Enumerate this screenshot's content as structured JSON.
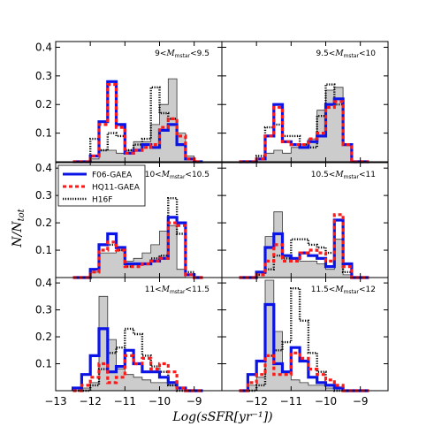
{
  "chart_data": {
    "type": "step-histogram",
    "xlabel": "Log(sSFR[yr⁻¹])",
    "ylabel": "N/N_tot",
    "xlim": [
      -13,
      -8.2
    ],
    "ylim": [
      0,
      0.42
    ],
    "xticks": [
      -13,
      -12,
      -11,
      -10,
      -9
    ],
    "xtick_labels": [
      "−13",
      "−12",
      "−11",
      "−10",
      "−9"
    ],
    "yticks": [
      0.1,
      0.2,
      0.3,
      0.4
    ],
    "ytick_labels": [
      "0.1",
      "0.2",
      "0.3",
      "0.4"
    ],
    "bin_edges": [
      -12.5,
      -12.25,
      -12.0,
      -11.75,
      -11.5,
      -11.25,
      -11.0,
      -10.75,
      -10.5,
      -10.25,
      -10.0,
      -9.75,
      -9.5,
      -9.25,
      -9.0,
      -8.75
    ],
    "legend": {
      "position": "upper-left of middle-left panel",
      "entries": [
        {
          "name": "F06-GAEA",
          "color": "#0a14e6",
          "style": "solid"
        },
        {
          "name": "HQ11-GAEA",
          "color": "#ff1a1a",
          "style": "dashed"
        },
        {
          "name": "H16F",
          "color": "#000000",
          "style": "dotted"
        }
      ]
    },
    "panels": [
      {
        "label_pre": "9<",
        "label_sym": "M",
        "label_sub": "mstar",
        "label_post": "<9.5",
        "series": {
          "F06-GAEA": [
            0.0,
            0.0,
            0.02,
            0.14,
            0.28,
            0.13,
            0.03,
            0.04,
            0.06,
            0.05,
            0.11,
            0.13,
            0.06,
            0.01,
            0.0
          ],
          "HQ11-GAEA": [
            0.0,
            0.0,
            0.02,
            0.13,
            0.27,
            0.12,
            0.03,
            0.04,
            0.05,
            0.06,
            0.12,
            0.15,
            0.09,
            0.01,
            0.0
          ],
          "H16F": [
            0.0,
            0.0,
            0.08,
            0.04,
            0.1,
            0.09,
            0.04,
            0.06,
            0.08,
            0.26,
            0.17,
            0.15,
            0.06,
            0.01,
            0.0
          ],
          "hist": [
            0.0,
            0.0,
            0.01,
            0.04,
            0.04,
            0.03,
            0.04,
            0.07,
            0.07,
            0.13,
            0.2,
            0.29,
            0.1,
            0.02,
            0.0
          ]
        }
      },
      {
        "label_pre": "9.5<",
        "label_sym": "M",
        "label_sub": "mstar",
        "label_post": "<10",
        "series": {
          "F06-GAEA": [
            0.0,
            0.0,
            0.01,
            0.09,
            0.2,
            0.07,
            0.06,
            0.05,
            0.07,
            0.09,
            0.2,
            0.22,
            0.06,
            0.0,
            0.0
          ],
          "HQ11-GAEA": [
            0.0,
            0.0,
            0.01,
            0.09,
            0.19,
            0.07,
            0.06,
            0.06,
            0.08,
            0.1,
            0.19,
            0.21,
            0.06,
            0.0,
            0.0
          ],
          "H16F": [
            0.0,
            0.0,
            0.02,
            0.12,
            0.13,
            0.09,
            0.09,
            0.06,
            0.05,
            0.16,
            0.27,
            0.2,
            0.06,
            0.0,
            0.0
          ],
          "hist": [
            0.0,
            0.0,
            0.01,
            0.03,
            0.04,
            0.03,
            0.05,
            0.05,
            0.08,
            0.18,
            0.25,
            0.26,
            0.06,
            0.0,
            0.0
          ]
        }
      },
      {
        "label_pre": "10<",
        "label_sym": "M",
        "label_sub": "mstar",
        "label_post": "<10.5",
        "series": {
          "F06-GAEA": [
            0.0,
            0.0,
            0.03,
            0.12,
            0.16,
            0.11,
            0.05,
            0.05,
            0.05,
            0.06,
            0.07,
            0.22,
            0.2,
            0.01,
            0.0
          ],
          "HQ11-GAEA": [
            0.0,
            0.0,
            0.02,
            0.1,
            0.13,
            0.1,
            0.04,
            0.04,
            0.05,
            0.06,
            0.07,
            0.2,
            0.19,
            0.01,
            0.0
          ],
          "H16F": [
            0.0,
            0.0,
            0.03,
            0.12,
            0.12,
            0.1,
            0.04,
            0.05,
            0.05,
            0.07,
            0.08,
            0.29,
            0.16,
            0.02,
            0.0
          ],
          "hist": [
            0.0,
            0.0,
            0.02,
            0.09,
            0.09,
            0.1,
            0.06,
            0.07,
            0.09,
            0.12,
            0.17,
            0.19,
            0.03,
            0.0,
            0.0
          ]
        }
      },
      {
        "label_pre": "10.5<",
        "label_sym": "M",
        "label_sub": "mstar",
        "label_post": "<11",
        "series": {
          "F06-GAEA": [
            0.0,
            0.0,
            0.02,
            0.11,
            0.16,
            0.08,
            0.07,
            0.09,
            0.08,
            0.07,
            0.04,
            0.21,
            0.05,
            0.0,
            0.0
          ],
          "HQ11-GAEA": [
            0.0,
            0.0,
            0.01,
            0.06,
            0.12,
            0.06,
            0.06,
            0.09,
            0.1,
            0.09,
            0.06,
            0.23,
            0.04,
            0.0,
            0.0
          ],
          "H16F": [
            0.0,
            0.0,
            0.01,
            0.03,
            0.08,
            0.07,
            0.14,
            0.14,
            0.12,
            0.11,
            0.09,
            0.21,
            0.02,
            0.0,
            0.0
          ],
          "hist": [
            0.0,
            0.0,
            0.02,
            0.15,
            0.24,
            0.08,
            0.07,
            0.06,
            0.06,
            0.05,
            0.03,
            0.14,
            0.01,
            0.0,
            0.0
          ]
        }
      },
      {
        "label_pre": "11<",
        "label_sym": "M",
        "label_sub": "mstar",
        "label_post": "<11.5",
        "series": {
          "F06-GAEA": [
            0.01,
            0.06,
            0.13,
            0.23,
            0.07,
            0.09,
            0.15,
            0.1,
            0.07,
            0.07,
            0.05,
            0.03,
            0.01,
            0.0,
            0.0
          ],
          "HQ11-GAEA": [
            0.0,
            0.02,
            0.05,
            0.1,
            0.03,
            0.05,
            0.13,
            0.1,
            0.12,
            0.08,
            0.1,
            0.07,
            0.01,
            0.0,
            0.0
          ],
          "H16F": [
            0.0,
            0.0,
            0.02,
            0.08,
            0.14,
            0.16,
            0.23,
            0.21,
            0.13,
            0.09,
            0.07,
            0.02,
            0.0,
            0.0,
            0.0
          ],
          "hist": [
            0.0,
            0.01,
            0.03,
            0.35,
            0.19,
            0.08,
            0.06,
            0.05,
            0.04,
            0.03,
            0.03,
            0.02,
            0.0,
            0.0,
            0.0
          ]
        }
      },
      {
        "label_pre": "11.5<",
        "label_sym": "M",
        "label_sub": "mstar",
        "label_post": "<12",
        "series": {
          "F06-GAEA": [
            0.0,
            0.06,
            0.11,
            0.32,
            0.1,
            0.07,
            0.16,
            0.11,
            0.05,
            0.03,
            0.02,
            0.01,
            0.0,
            0.0,
            0.0
          ],
          "HQ11-GAEA": [
            0.0,
            0.03,
            0.06,
            0.13,
            0.06,
            0.06,
            0.14,
            0.12,
            0.08,
            0.06,
            0.04,
            0.02,
            0.0,
            0.0,
            0.0
          ],
          "H16F": [
            0.0,
            0.0,
            0.02,
            0.13,
            0.15,
            0.18,
            0.38,
            0.26,
            0.14,
            0.07,
            0.02,
            0.0,
            0.0,
            0.0,
            0.0
          ],
          "hist": [
            0.0,
            0.02,
            0.05,
            0.41,
            0.22,
            0.07,
            0.04,
            0.03,
            0.02,
            0.02,
            0.01,
            0.0,
            0.0,
            0.0,
            0.0
          ]
        }
      }
    ]
  },
  "colors": {
    "hist_fill": "#cccccc",
    "hist_edge": "#333333",
    "f06": "#0a14e6",
    "hq11": "#ff1a1a",
    "h16f": "#000000"
  }
}
